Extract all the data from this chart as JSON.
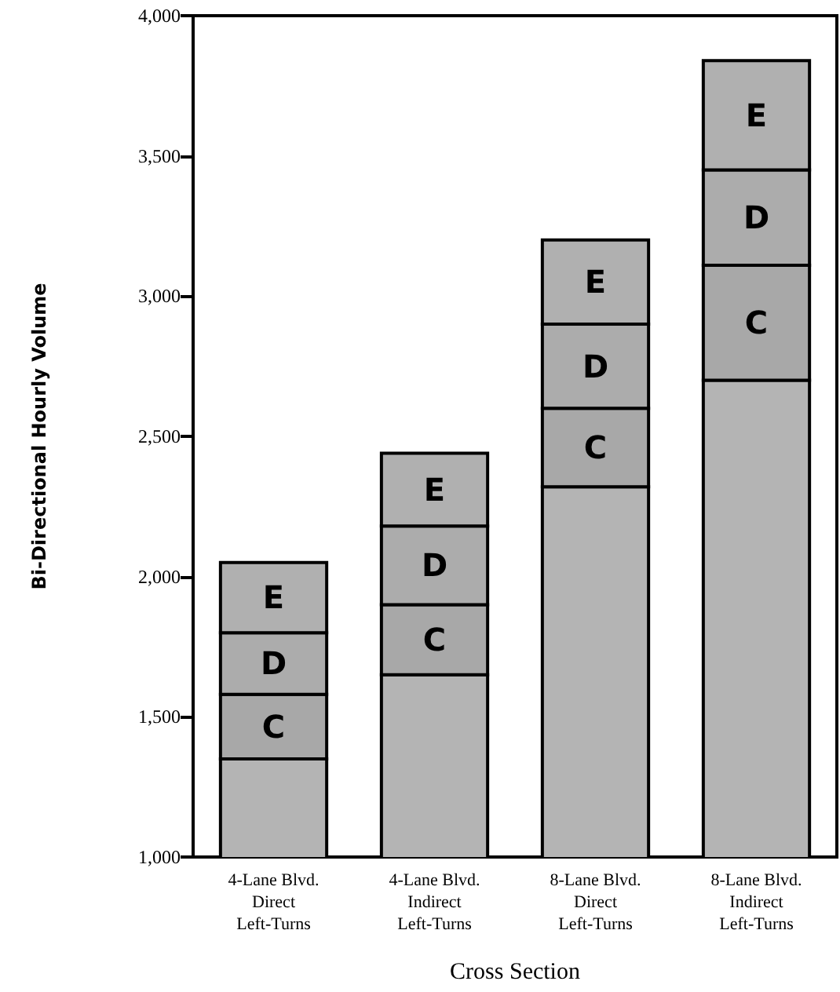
{
  "chart_data": {
    "type": "bar",
    "stacked": true,
    "xlabel": "Cross Section",
    "ylabel": "Bi-Directional Hourly Volume",
    "categories": [
      "4-Lane Blvd.\nDirect\nLeft-Turns",
      "4-Lane Blvd.\nIndirect\nLeft-Turns",
      "8-Lane Blvd.\nDirect\nLeft-Turns",
      "8-Lane Blvd.\nIndirect\nLeft-Turns"
    ],
    "series": [
      {
        "color": "#b4b4b4",
        "values": [
          1350,
          1650,
          2320,
          2700
        ]
      },
      {
        "name": "C",
        "color": "#a8a8a8",
        "base": [
          1350,
          1650,
          2320,
          2700
        ],
        "values": [
          230,
          250,
          280,
          410
        ]
      },
      {
        "name": "D",
        "color": "#acacac",
        "base": [
          1580,
          1900,
          2600,
          3110
        ],
        "values": [
          220,
          280,
          300,
          340
        ]
      },
      {
        "name": "E",
        "color": "#b0b0b0",
        "base": [
          1800,
          2180,
          2900,
          3450
        ],
        "values": [
          250,
          260,
          300,
          390
        ]
      }
    ],
    "ylim": [
      1000,
      4000
    ],
    "yticks": [
      {
        "value": 1000,
        "label": "1,000"
      },
      {
        "value": 1500,
        "label": "1,500"
      },
      {
        "value": 2000,
        "label": "2,000"
      },
      {
        "value": 2500,
        "label": "2,500"
      },
      {
        "value": 3000,
        "label": "3,000"
      },
      {
        "value": 3500,
        "label": "3,500"
      },
      {
        "value": 4000,
        "label": "4,000"
      }
    ],
    "grid": false,
    "legend": false
  }
}
